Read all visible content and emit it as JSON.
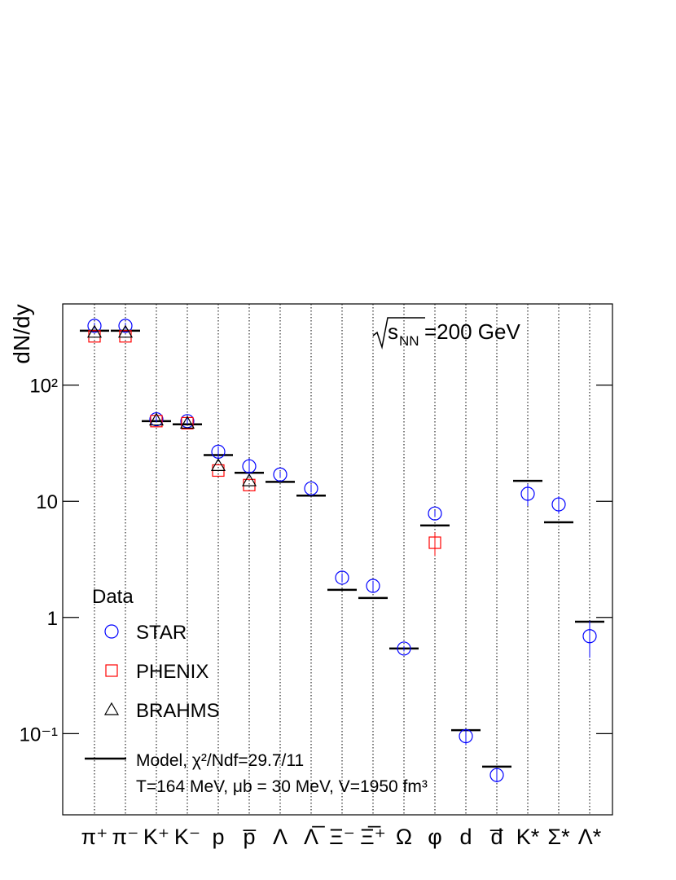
{
  "chart_data": {
    "type": "scatter",
    "y_label": "dN/dy",
    "log_y": true,
    "annotation": {
      "symbol": "s",
      "subscript": "NN",
      "text": "=200 GeV"
    },
    "categories": [
      "π⁺",
      "π⁻",
      "K⁺",
      "K⁻",
      "p",
      "p̅",
      "Λ",
      "Λ̅",
      "Ξ⁻",
      "Ξ̅⁺",
      "Ω",
      "φ",
      "d",
      "d̅",
      "K*",
      "Σ*",
      "Λ*"
    ],
    "ylim": [
      0.02,
      500
    ],
    "yticks": [
      {
        "value": 0.1,
        "label": "10⁻¹"
      },
      1,
      10,
      {
        "value": 100,
        "label": "10²"
      }
    ],
    "legend_title": "Data",
    "legend_position": "lower left",
    "series": [
      {
        "name": "STAR",
        "color": "#0000ff",
        "marker": "circle",
        "values": [
          324,
          324,
          50.8,
          49,
          26.7,
          20,
          17,
          12.9,
          2.2,
          1.87,
          0.54,
          7.85,
          0.095,
          0.044,
          11.6,
          9.4,
          0.69
        ],
        "errors": [
          20,
          20,
          3,
          3,
          3,
          3.5,
          1,
          1,
          0.2,
          0.2,
          0.03,
          0.5,
          0.015,
          0.006,
          2.5,
          1.6,
          0.24
        ]
      },
      {
        "name": "PHENIX",
        "color": "#ff0000",
        "marker": "square",
        "values": [
          263,
          263,
          49,
          47,
          18.4,
          13.8,
          null,
          null,
          null,
          null,
          null,
          4.4,
          null,
          null,
          null,
          null,
          null
        ],
        "errors": [
          null,
          null,
          null,
          null,
          null,
          null,
          null,
          null,
          null,
          null,
          null,
          1,
          null,
          null,
          null,
          null,
          null
        ]
      },
      {
        "name": "BRAHMS",
        "color": "#000000",
        "marker": "triangle",
        "values": [
          285,
          285,
          50,
          47,
          20.3,
          15,
          null,
          null,
          null,
          null,
          null,
          null,
          null,
          null,
          null,
          null,
          null
        ]
      },
      {
        "name": "Model, χ²/Ndf=29.7/11",
        "color": "#000000",
        "marker": "hbar",
        "values": [
          294,
          294,
          49,
          46,
          25,
          17.6,
          14.7,
          11.2,
          1.73,
          1.47,
          0.54,
          6.2,
          0.107,
          0.052,
          15,
          6.6,
          0.92
        ]
      }
    ],
    "model_note": "T=164 MeV, μb = 30 MeV, V=1950 fm³"
  }
}
